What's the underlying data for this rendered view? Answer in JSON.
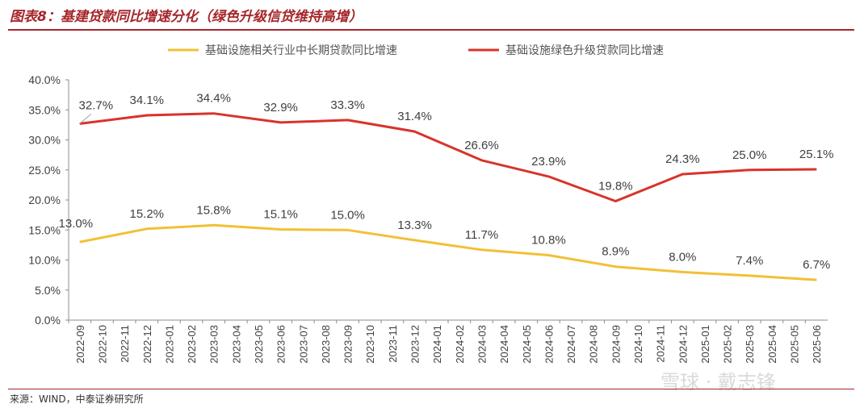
{
  "title": "图表8：基建贷款同比增速分化（绿色升级信贷维持高增）",
  "source": "来源：WIND，中泰证券研究所",
  "watermark": "雪球 · 戴志锋",
  "colors": {
    "accent": "#a6262a",
    "series_yellow": "#f2c037",
    "series_red": "#d9332b"
  },
  "chart_data": {
    "type": "line",
    "title": "",
    "xlabel": "",
    "ylabel": "",
    "ylim": [
      0,
      40
    ],
    "yticks": [
      "40.0%",
      "35.0%",
      "30.0%",
      "25.0%",
      "20.0%",
      "15.0%",
      "10.0%",
      "5.0%",
      "0.0%"
    ],
    "grid": false,
    "legend": "top-center",
    "x": [
      "2022-09",
      "2022-10",
      "2022-11",
      "2022-12",
      "2023-01",
      "2023-02",
      "2023-03",
      "2023-04",
      "2023-05",
      "2023-06",
      "2023-07",
      "2023-08",
      "2023-09",
      "2023-10",
      "2023-11",
      "2023-12",
      "2024-01",
      "2024-02",
      "2024-03",
      "2024-04",
      "2024-05",
      "2024-06",
      "2024-07",
      "2024-08",
      "2024-09",
      "2024-10",
      "2024-11",
      "2024-12",
      "2025-01",
      "2025-02",
      "2025-03",
      "2025-04",
      "2025-05",
      "2025-06"
    ],
    "series": [
      {
        "name": "基础设施相关行业中长期贷款同比增速",
        "color": "#f2c037",
        "points": [
          {
            "x": "2022-09",
            "y": 13.0,
            "label": "13.0%"
          },
          {
            "x": "2022-12",
            "y": 15.2,
            "label": "15.2%"
          },
          {
            "x": "2023-03",
            "y": 15.8,
            "label": "15.8%"
          },
          {
            "x": "2023-06",
            "y": 15.1,
            "label": "15.1%"
          },
          {
            "x": "2023-09",
            "y": 15.0,
            "label": "15.0%"
          },
          {
            "x": "2023-12",
            "y": 13.3,
            "label": "13.3%"
          },
          {
            "x": "2024-03",
            "y": 11.7,
            "label": "11.7%"
          },
          {
            "x": "2024-06",
            "y": 10.8,
            "label": "10.8%"
          },
          {
            "x": "2024-09",
            "y": 8.9,
            "label": "8.9%"
          },
          {
            "x": "2024-12",
            "y": 8.0,
            "label": "8.0%"
          },
          {
            "x": "2025-03",
            "y": 7.4,
            "label": "7.4%"
          },
          {
            "x": "2025-06",
            "y": 6.7,
            "label": "6.7%"
          }
        ]
      },
      {
        "name": "基础设施绿色升级贷款同比增速",
        "color": "#d9332b",
        "points": [
          {
            "x": "2022-09",
            "y": 32.7,
            "label": "32.7%"
          },
          {
            "x": "2022-12",
            "y": 34.1,
            "label": "34.1%"
          },
          {
            "x": "2023-03",
            "y": 34.4,
            "label": "34.4%"
          },
          {
            "x": "2023-06",
            "y": 32.9,
            "label": "32.9%"
          },
          {
            "x": "2023-09",
            "y": 33.3,
            "label": "33.3%"
          },
          {
            "x": "2023-12",
            "y": 31.4,
            "label": "31.4%"
          },
          {
            "x": "2024-03",
            "y": 26.6,
            "label": "26.6%"
          },
          {
            "x": "2024-06",
            "y": 23.9,
            "label": "23.9%"
          },
          {
            "x": "2024-09",
            "y": 19.8,
            "label": "19.8%"
          },
          {
            "x": "2024-12",
            "y": 24.3,
            "label": "24.3%"
          },
          {
            "x": "2025-03",
            "y": 25.0,
            "label": "25.0%"
          },
          {
            "x": "2025-06",
            "y": 25.1,
            "label": "25.1%"
          }
        ]
      }
    ]
  }
}
